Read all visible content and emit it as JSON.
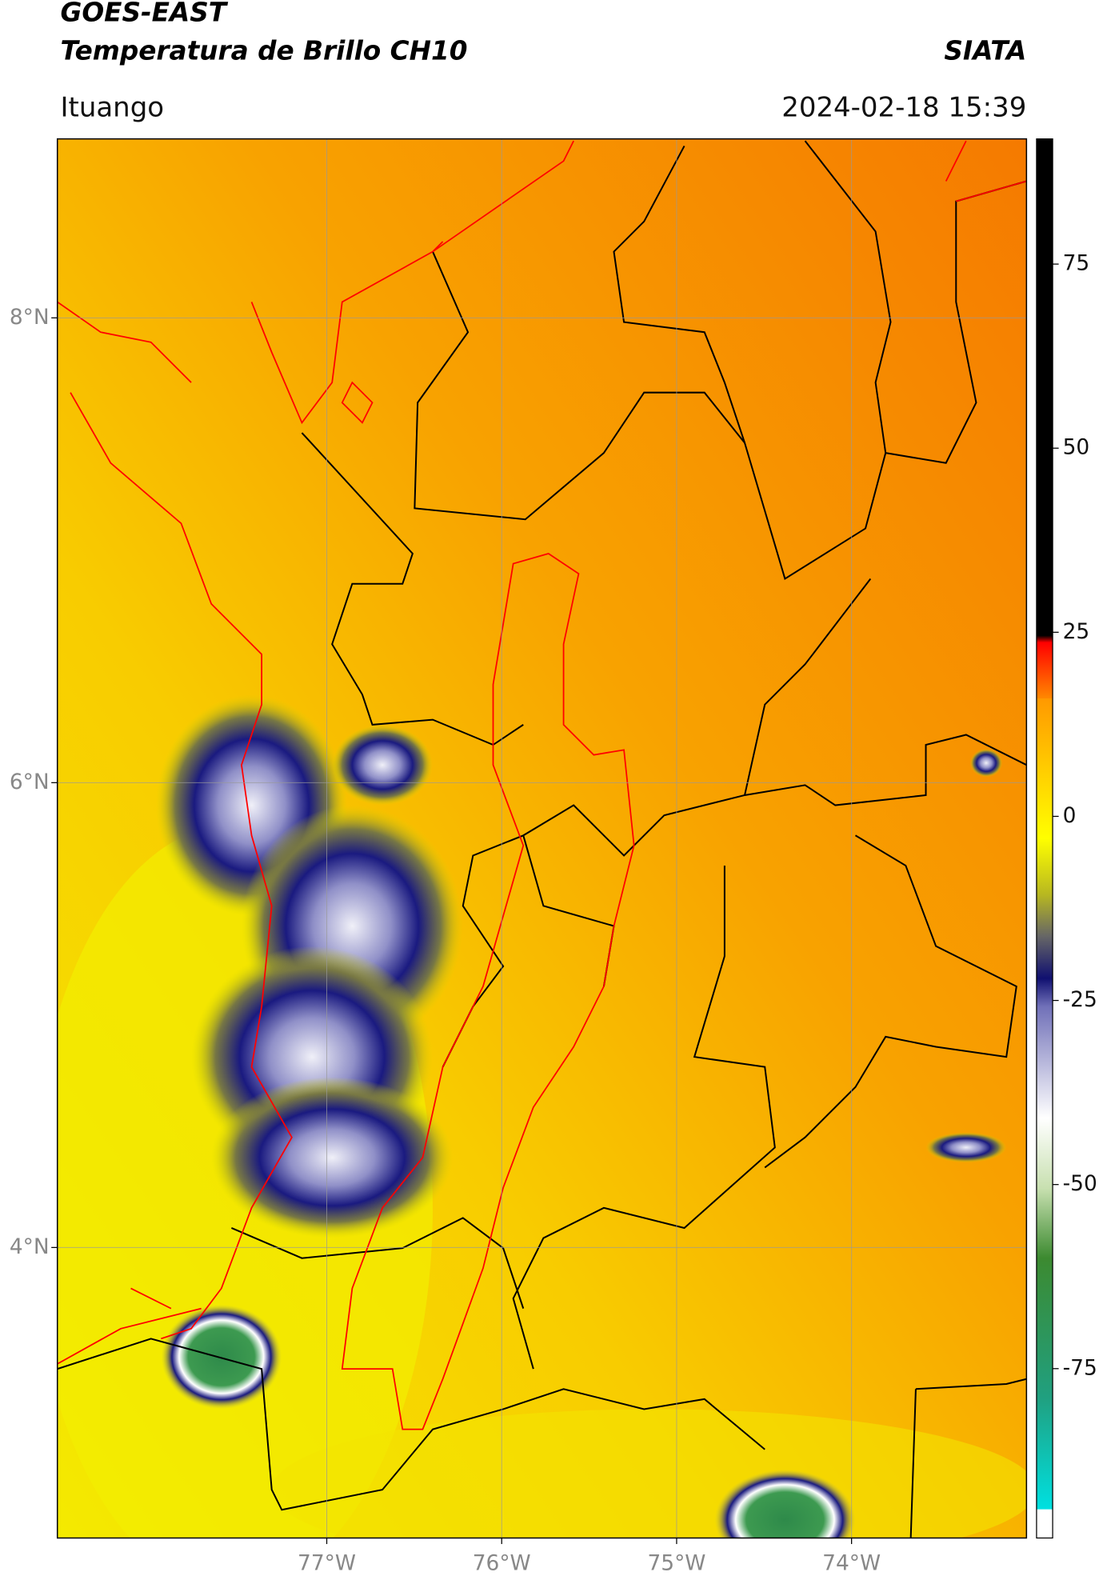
{
  "header": {
    "title_line1": "GOES-EAST",
    "title_line2": "Temperatura de Brillo CH10",
    "agency": "SIATA",
    "location": "Ituango",
    "datetime": "2024-02-18 15:39"
  },
  "map": {
    "lon_range": [
      -78.54,
      -73.0
    ],
    "lat_range": [
      2.75,
      8.77
    ],
    "lat_ticks": [
      {
        "value": 8,
        "label": "8°N"
      },
      {
        "value": 6,
        "label": "6°N"
      },
      {
        "value": 4,
        "label": "4°N"
      }
    ],
    "lon_ticks": [
      {
        "value": -77,
        "label": "77°W"
      },
      {
        "value": -76,
        "label": "76°W"
      },
      {
        "value": -75,
        "label": "75°W"
      },
      {
        "value": -74,
        "label": "74°W"
      }
    ],
    "grid": true
  },
  "colorbar": {
    "range": [
      -98,
      92
    ],
    "ticks": [
      75,
      50,
      25,
      0,
      -25,
      -50,
      -75
    ]
  }
}
